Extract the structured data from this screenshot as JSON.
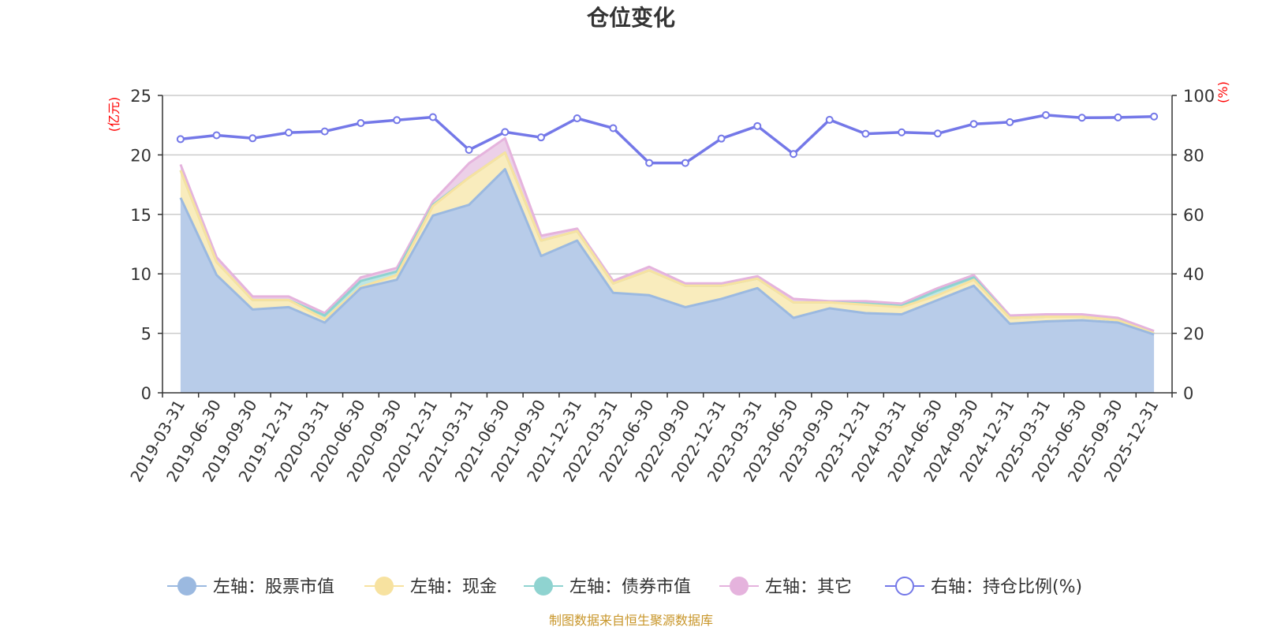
{
  "chart_data": {
    "type": "area",
    "title": "仓位变化",
    "left_axis_unit": "(亿元)",
    "right_axis_unit": "(%)",
    "left_ylim": [
      0,
      25
    ],
    "right_ylim": [
      0,
      100
    ],
    "left_ticks": [
      "0",
      "5",
      "10",
      "15",
      "20",
      "25"
    ],
    "right_ticks": [
      "0",
      "20",
      "40",
      "60",
      "80",
      "100"
    ],
    "categories": [
      "2019-03-31",
      "2019-06-30",
      "2019-09-30",
      "2019-12-31",
      "2020-03-31",
      "2020-06-30",
      "2020-09-30",
      "2020-12-31",
      "2021-03-31",
      "2021-06-30",
      "2021-09-30",
      "2021-12-31",
      "2022-03-31",
      "2022-06-30",
      "2022-09-30",
      "2022-12-31",
      "2023-03-31",
      "2023-06-30",
      "2023-09-30",
      "2023-12-31",
      "2024-03-31",
      "2024-06-30",
      "2024-09-30",
      "2024-12-31",
      "2025-03-31",
      "2025-06-30",
      "2025-09-30",
      "2025-12-31"
    ],
    "stacked_series": [
      {
        "name": "左轴：股票市值",
        "color": "#9bb9e0",
        "fill": "#b8cce9",
        "values": [
          16.4,
          9.9,
          7.0,
          7.2,
          5.9,
          8.8,
          9.5,
          14.9,
          15.8,
          18.8,
          11.5,
          12.8,
          8.4,
          8.2,
          7.2,
          7.9,
          8.8,
          6.3,
          7.1,
          6.7,
          6.6,
          7.8,
          9.0,
          5.8,
          6.0,
          6.1,
          5.9,
          4.9
        ]
      },
      {
        "name": "左轴：现金",
        "color": "#f7e2a0",
        "fill": "#f9ecbd",
        "values": [
          2.3,
          1.1,
          0.8,
          0.6,
          0.3,
          0.1,
          0.4,
          0.8,
          2.3,
          1.4,
          1.3,
          0.8,
          0.8,
          2.1,
          1.8,
          1.1,
          0.8,
          1.3,
          0.5,
          0.7,
          0.6,
          0.4,
          0.5,
          0.5,
          0.4,
          0.3,
          0.2,
          0.1
        ]
      },
      {
        "name": "左轴：债券市值",
        "color": "#8fd3d0",
        "fill": "#bde6e4",
        "values": [
          0,
          0,
          0,
          0,
          0.3,
          0.5,
          0.3,
          0.1,
          0,
          0,
          0,
          0,
          0,
          0,
          0,
          0,
          0,
          0,
          0,
          0.1,
          0.1,
          0.4,
          0.2,
          0,
          0,
          0,
          0,
          0
        ]
      },
      {
        "name": "左轴：其它",
        "color": "#e5b3dd",
        "fill": "#ecd0e8",
        "values": [
          0.5,
          0.4,
          0.3,
          0.3,
          0.2,
          0.3,
          0.3,
          0.3,
          1.2,
          1.2,
          0.4,
          0.2,
          0.2,
          0.3,
          0.2,
          0.2,
          0.2,
          0.3,
          0.1,
          0.2,
          0.2,
          0.2,
          0.2,
          0.2,
          0.2,
          0.2,
          0.2,
          0.2
        ]
      }
    ],
    "line_series": {
      "name": "右轴：持仓比例(%)",
      "color": "#7478e8",
      "values": [
        85.3,
        86.6,
        85.6,
        87.5,
        87.9,
        90.7,
        91.7,
        92.7,
        81.7,
        87.7,
        85.9,
        92.3,
        89.0,
        77.3,
        77.3,
        85.5,
        89.7,
        80.3,
        91.8,
        87.1,
        87.6,
        87.2,
        90.4,
        91.0,
        93.4,
        92.5,
        92.6,
        92.9
      ]
    },
    "legend_position": "bottom",
    "grid": true
  },
  "footer": "制图数据来自恒生聚源数据库"
}
